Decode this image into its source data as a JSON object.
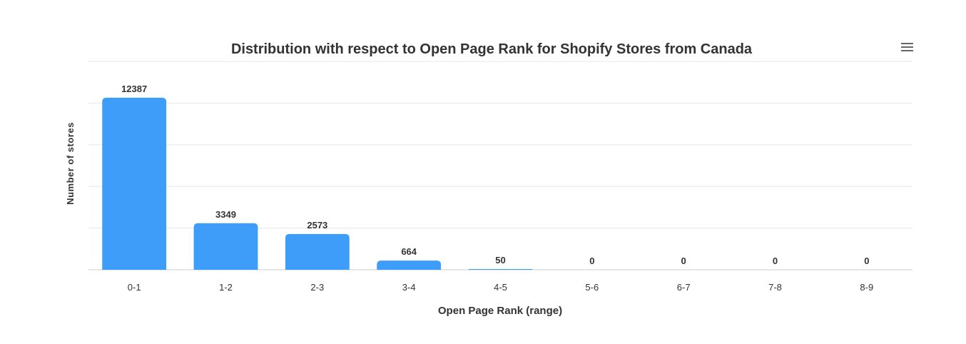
{
  "chart_data": {
    "type": "bar",
    "title": "Distribution with respect to Open Page Rank for Shopify Stores from Canada",
    "xlabel": "Open Page Rank (range)",
    "ylabel": "Number of stores",
    "categories": [
      "0-1",
      "1-2",
      "2-3",
      "3-4",
      "4-5",
      "5-6",
      "6-7",
      "7-8",
      "8-9"
    ],
    "values": [
      12387,
      3349,
      2573,
      664,
      50,
      0,
      0,
      0,
      0
    ],
    "ylim": [
      0,
      15000
    ],
    "grid": true,
    "legend": false,
    "bar_color": "#3d9df9"
  },
  "menu": {
    "icon": "hamburger-menu-icon"
  }
}
